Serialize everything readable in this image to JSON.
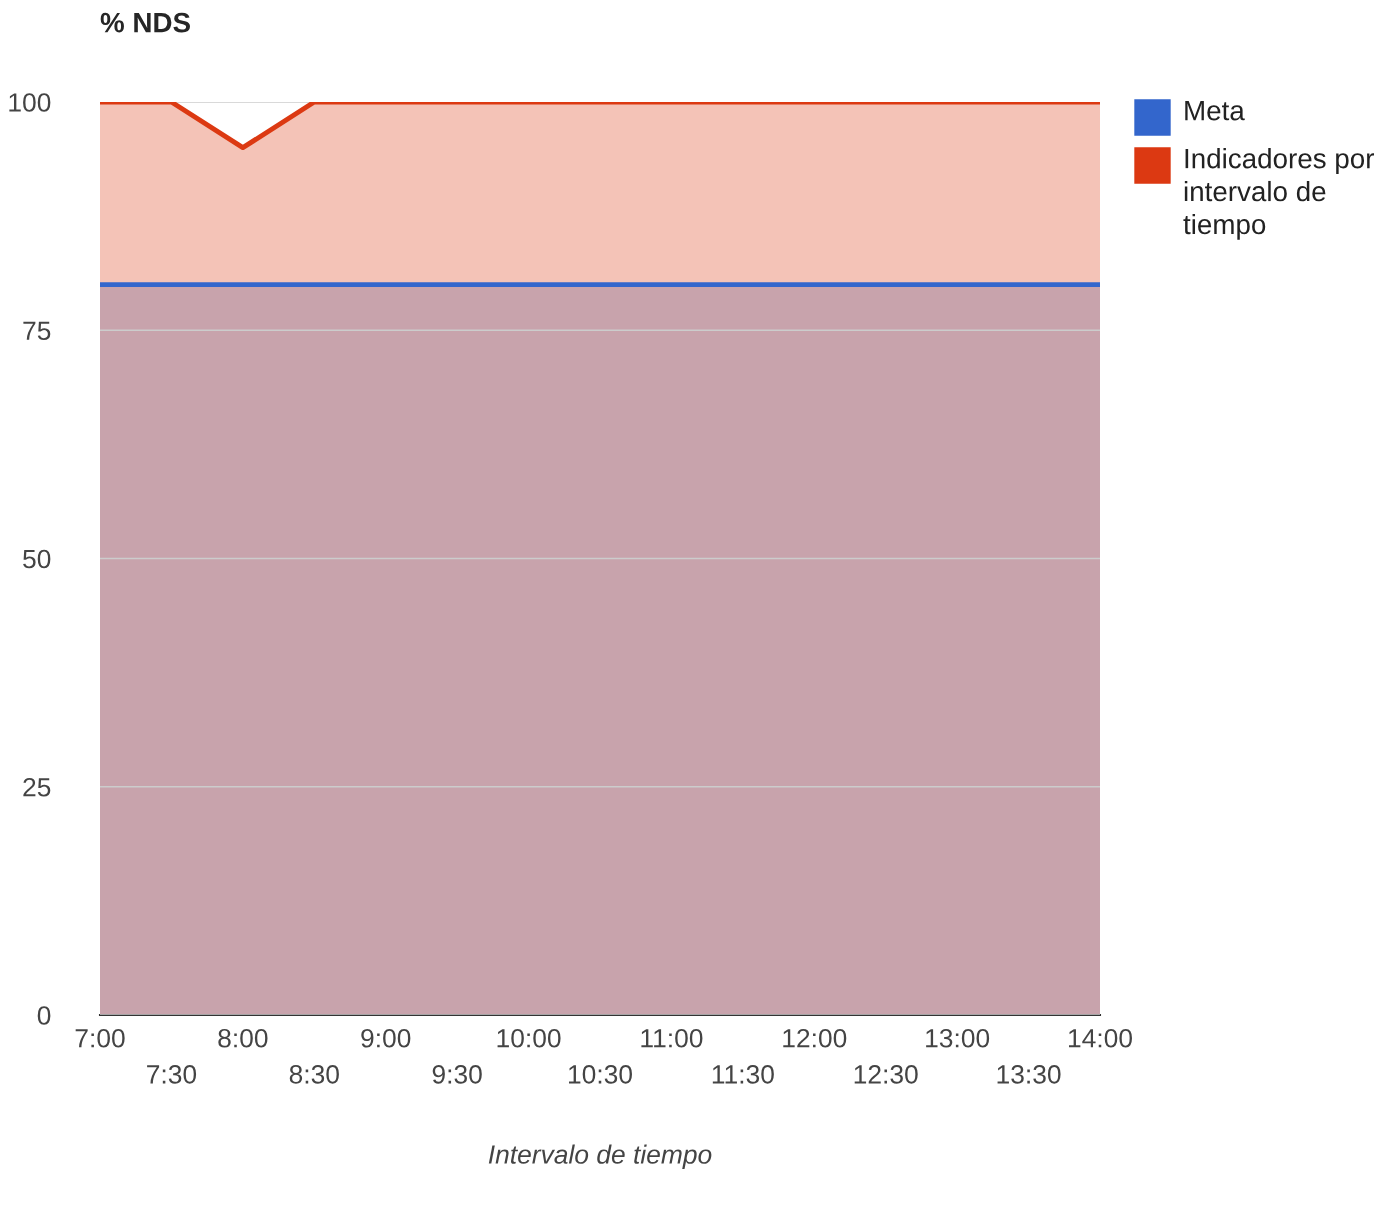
{
  "chart_data": {
    "type": "area",
    "title": "% NDS",
    "xlabel": "Intervalo de tiempo",
    "categories": [
      "7:00",
      "7:30",
      "8:00",
      "8:30",
      "9:00",
      "9:30",
      "10:00",
      "10:30",
      "11:00",
      "11:30",
      "12:00",
      "12:30",
      "13:00",
      "13:30",
      "14:00"
    ],
    "series": [
      {
        "name": "Meta",
        "color": "#3366cc",
        "values": [
          80,
          80,
          80,
          80,
          80,
          80,
          80,
          80,
          80,
          80,
          80,
          80,
          80,
          80,
          80
        ]
      },
      {
        "name": "Indicadores por intervalo de tiempo",
        "color": "#dc3912",
        "values": [
          100,
          100,
          95,
          100,
          100,
          100,
          100,
          100,
          100,
          100,
          100,
          100,
          100,
          100,
          100
        ]
      }
    ],
    "ylim": [
      0,
      100
    ],
    "yticks": [
      0,
      25,
      50,
      75,
      100
    ],
    "grid": "y",
    "legend": "top right"
  }
}
